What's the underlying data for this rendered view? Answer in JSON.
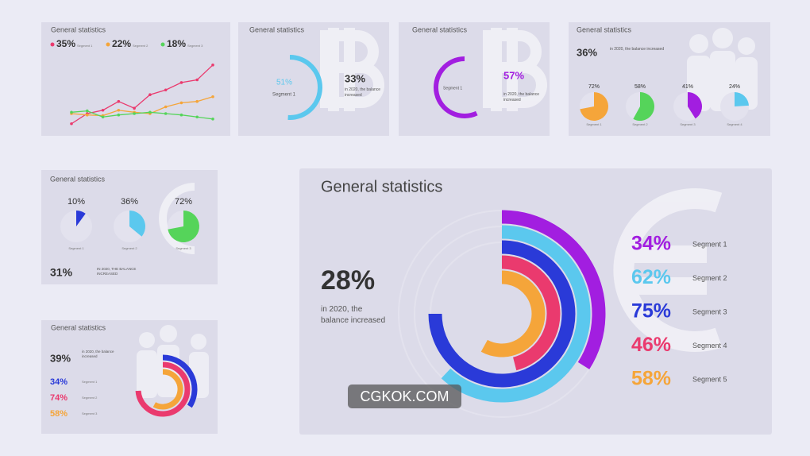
{
  "chart_data": [
    {
      "type": "line",
      "title": "General statistics",
      "categories": [
        null,
        null,
        null,
        null,
        null,
        null,
        null,
        null,
        null,
        null
      ],
      "ylim": [
        0,
        100
      ],
      "series": [
        {
          "name": "Segment 1",
          "legend_value": "35%",
          "color": "#ea3a6e",
          "values": [
            5,
            20,
            25,
            38,
            28,
            48,
            55,
            66,
            70,
            92
          ]
        },
        {
          "name": "Segment 2",
          "legend_value": "22%",
          "color": "#f5a53a",
          "values": [
            20,
            18,
            17,
            25,
            22,
            20,
            30,
            36,
            38,
            45
          ]
        },
        {
          "name": "Segment 3",
          "legend_value": "18%",
          "color": "#55d45a",
          "values": [
            22,
            24,
            15,
            18,
            20,
            22,
            20,
            18,
            15,
            12
          ]
        }
      ]
    },
    {
      "type": "radial",
      "title": "General statistics",
      "highlight": "33%",
      "note": "in 2020, the balance increased",
      "series": [
        {
          "name": "Segment 1",
          "color": "#5bc8ee",
          "value": 51,
          "value_label": "51%"
        }
      ]
    },
    {
      "type": "radial",
      "title": "General statistics",
      "note": "in 2020, the balance increased",
      "series": [
        {
          "name": "Segment 1",
          "color": "#a21ee0",
          "value": 57,
          "value_label": "57%"
        }
      ]
    },
    {
      "type": "pie",
      "title": "General statistics",
      "highlight": "36%",
      "note": "in 2020, the balance increased",
      "series": [
        {
          "name": "Segment 1",
          "color": "#f5a53a",
          "value": 72,
          "value_label": "72%"
        },
        {
          "name": "Segment 2",
          "color": "#55d45a",
          "value": 58,
          "value_label": "58%"
        },
        {
          "name": "Segment 3",
          "color": "#a21ee0",
          "value": 41,
          "value_label": "41%"
        },
        {
          "name": "Segment 4",
          "color": "#5bc8ee",
          "value": 24,
          "value_label": "24%"
        }
      ]
    },
    {
      "type": "pie",
      "title": "General statistics",
      "highlight": "31%",
      "note": "IN 2020, THE BALANCE INCREASED",
      "series": [
        {
          "name": "Segment 1",
          "color": "#2a3ad8",
          "value": 10,
          "value_label": "10%"
        },
        {
          "name": "Segment 2",
          "color": "#5bc8ee",
          "value": 36,
          "value_label": "36%"
        },
        {
          "name": "Segment 3",
          "color": "#55d45a",
          "value": 72,
          "value_label": "72%"
        }
      ]
    },
    {
      "type": "radial",
      "title": "General statistics",
      "highlight": "28%",
      "note": "in 2020, the balance increased",
      "series": [
        {
          "name": "Segment 1",
          "color": "#a21ee0",
          "value": 34,
          "value_label": "34%"
        },
        {
          "name": "Segment 2",
          "color": "#5bc8ee",
          "value": 62,
          "value_label": "62%"
        },
        {
          "name": "Segment 3",
          "color": "#2a3ad8",
          "value": 75,
          "value_label": "75%"
        },
        {
          "name": "Segment 4",
          "color": "#ea3a6e",
          "value": 46,
          "value_label": "46%"
        },
        {
          "name": "Segment 5",
          "color": "#f5a53a",
          "value": 58,
          "value_label": "58%"
        }
      ]
    },
    {
      "type": "radial",
      "title": "General statistics",
      "highlight": "39%",
      "note": "in 2020, the balance increased",
      "series": [
        {
          "name": "Segment 1",
          "color": "#2a3ad8",
          "value": 34,
          "value_label": "34%"
        },
        {
          "name": "Segment 2",
          "color": "#ea3a6e",
          "value": 74,
          "value_label": "74%"
        },
        {
          "name": "Segment 3",
          "color": "#f5a53a",
          "value": 58,
          "value_label": "58%"
        }
      ]
    }
  ],
  "watermark": "CGKOK.COM"
}
